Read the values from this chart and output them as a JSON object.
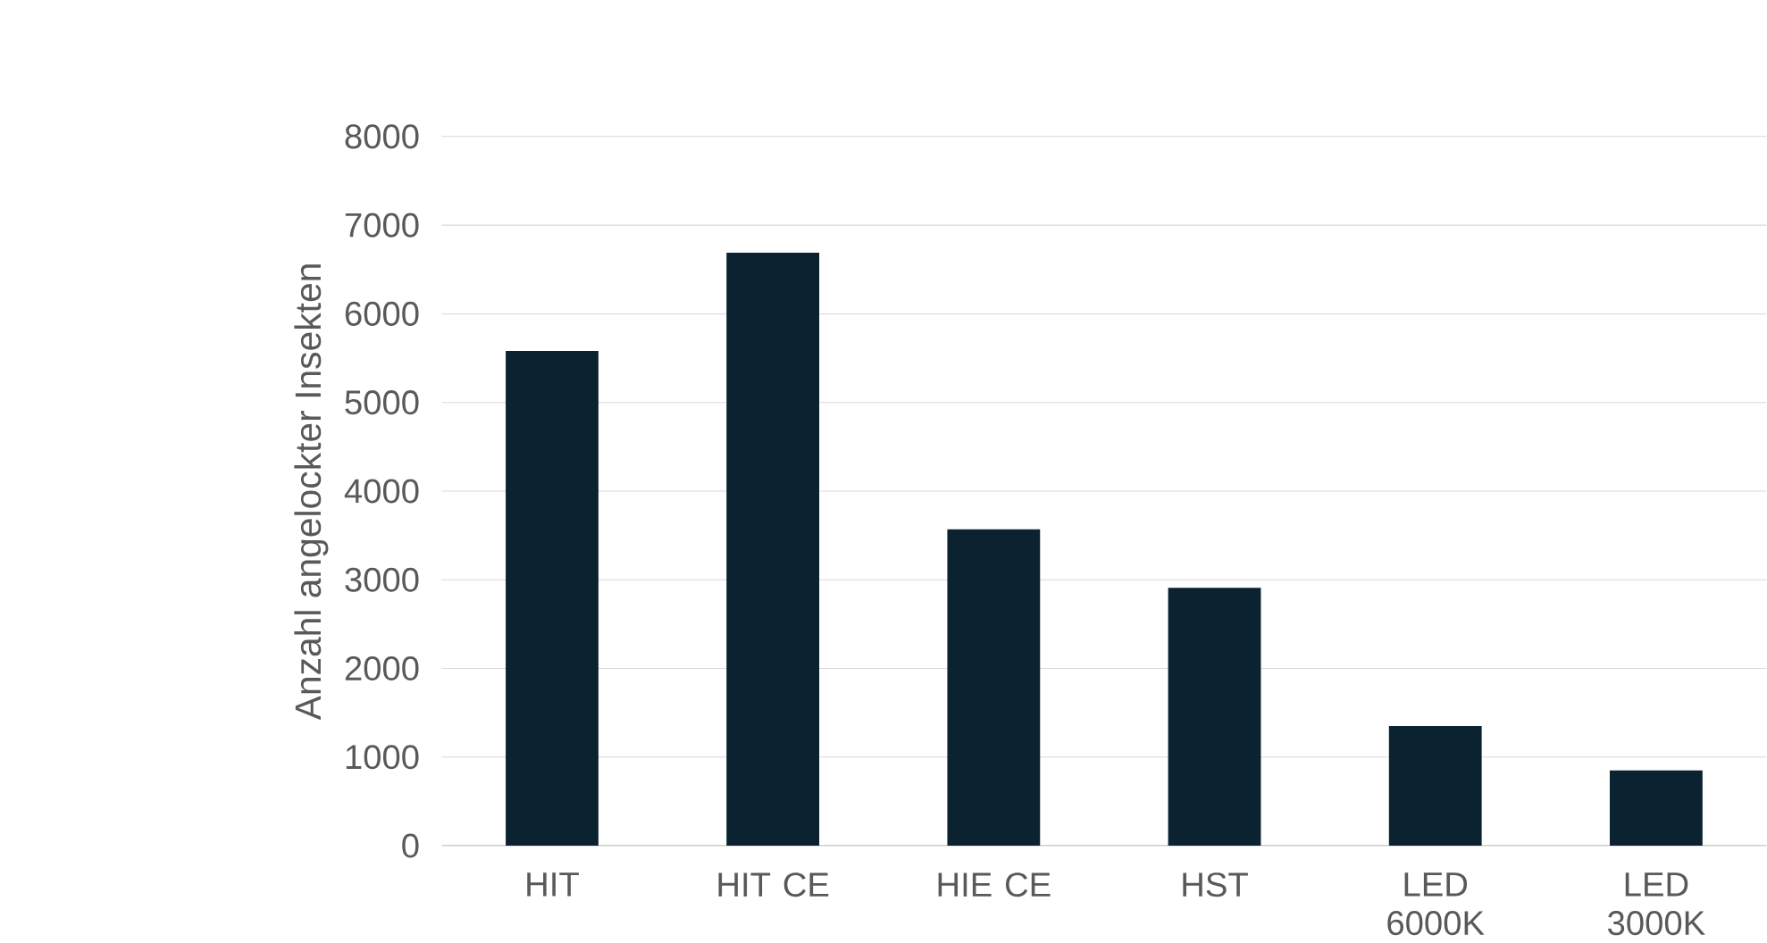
{
  "chart_data": {
    "type": "bar",
    "ylabel": "Anzahl angelockter Insekten",
    "categories": [
      "HIT",
      "HIT CE",
      "HIE CE",
      "HST",
      "LED 6000K",
      "LED 3000K"
    ],
    "values": [
      5580,
      6690,
      3570,
      2910,
      1350,
      850
    ],
    "color": "#0b2230",
    "ylim": [
      0,
      8000
    ],
    "yticks": [
      0,
      1000,
      2000,
      3000,
      4000,
      5000,
      6000,
      7000,
      8000
    ],
    "grid": "y"
  }
}
